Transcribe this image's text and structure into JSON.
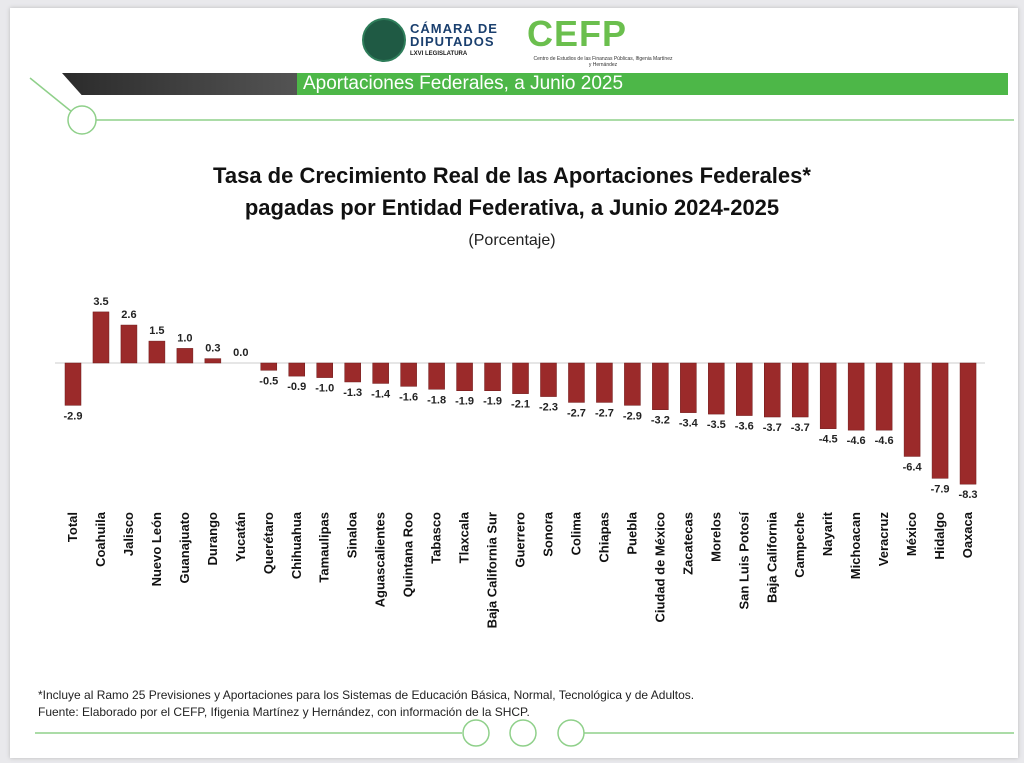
{
  "header": {
    "logo_camara": "CÁMARA DE DIPUTADOS",
    "logo_camara_sub": "LXVI LEGISLATURA",
    "logo_cefp": "CEFP",
    "logo_cefp_sub": "Centro de Estudios de las Finanzas Públicas, Ifigenia Martínez y Hernández",
    "banner": "Aportaciones Federales, a Junio 2025"
  },
  "chart_data": {
    "type": "bar",
    "title": "Tasa de Crecimiento Real de las Aportaciones Federales* pagadas por Entidad Federativa, a Junio 2024-2025",
    "title_line1": "Tasa de Crecimiento Real de las Aportaciones Federales*",
    "title_line2": "pagadas por Entidad Federativa, a Junio 2024-2025",
    "subtitle": "(Porcentaje)",
    "xlabel": "",
    "ylabel": "",
    "ylim": [
      -8.3,
      3.5
    ],
    "grid": false,
    "color": "#9b2a2a",
    "categories": [
      "Total",
      "Coahuila",
      "Jalisco",
      "Nuevo León",
      "Guanajuato",
      "Durango",
      "Yucatán",
      "Querétaro",
      "Chihuahua",
      "Tamaulipas",
      "Sinaloa",
      "Aguascalientes",
      "Quintana Roo",
      "Tabasco",
      "Tlaxcala",
      "Baja California Sur",
      "Guerrero",
      "Sonora",
      "Colima",
      "Chiapas",
      "Puebla",
      "Ciudad de México",
      "Zacatecas",
      "Morelos",
      "San Luis Potosí",
      "Baja California",
      "Campeche",
      "Nayarit",
      "Michoacan",
      "Veracruz",
      "México",
      "Hidalgo",
      "Oaxaca"
    ],
    "values": [
      -2.9,
      3.5,
      2.6,
      1.5,
      1.0,
      0.3,
      0.0,
      -0.5,
      -0.9,
      -1.0,
      -1.3,
      -1.4,
      -1.6,
      -1.8,
      -1.9,
      -1.9,
      -2.1,
      -2.3,
      -2.7,
      -2.7,
      -2.9,
      -3.2,
      -3.4,
      -3.5,
      -3.6,
      -3.7,
      -3.7,
      -4.5,
      -4.6,
      -4.6,
      -6.4,
      -7.9,
      -8.3
    ]
  },
  "notes": {
    "footnote": "*Incluye al Ramo 25 Previsiones y Aportaciones para los Sistemas de Educación Básica, Normal, Tecnológica y de Adultos.",
    "source": "Fuente: Elaborado por el CEFP, Ifigenia Martínez y Hernández, con información de la SHCP."
  }
}
